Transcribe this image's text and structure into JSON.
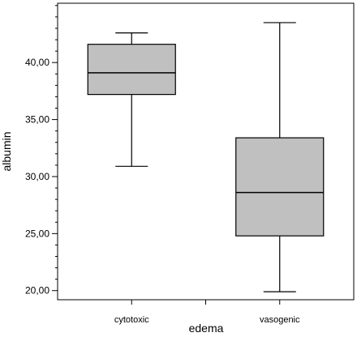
{
  "chart_data": {
    "type": "boxplot",
    "xlabel": "edema",
    "ylabel": "albumin",
    "categories": [
      "cytotoxic",
      "vasogenic"
    ],
    "boxes": [
      {
        "category": "cytotoxic",
        "whisker_low": 30.9,
        "q1": 37.2,
        "median": 39.1,
        "q3": 41.6,
        "whisker_high": 42.6
      },
      {
        "category": "vasogenic",
        "whisker_low": 19.9,
        "q1": 24.8,
        "median": 28.6,
        "q3": 33.4,
        "whisker_high": 43.5
      }
    ],
    "ylim": [
      19.2,
      45.2
    ],
    "yticks": [
      20,
      25,
      30,
      35,
      40
    ],
    "ytick_labels": [
      "20,00",
      "25,00",
      "30,00",
      "35,00",
      "40,00"
    ],
    "colors": {
      "box_fill": "#c0c0c0",
      "line": "#000000"
    },
    "grid": false
  }
}
